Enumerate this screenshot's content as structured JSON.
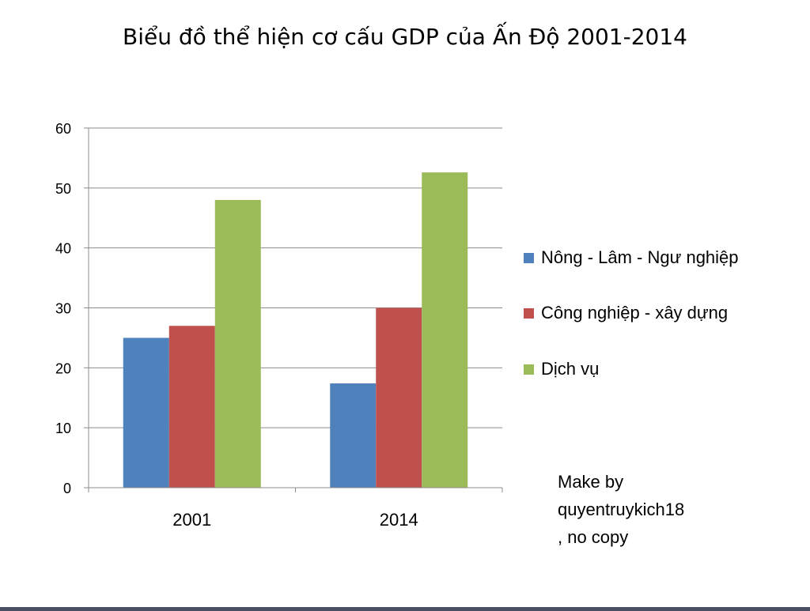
{
  "title": "Biểu đồ thể hiện cơ cấu GDP của Ấn Độ 2001-2014",
  "note": {
    "line1": "Make by",
    "line2": "quyentruykich18",
    "line3": ", no copy"
  },
  "chart_data": {
    "type": "bar",
    "title": "Biểu đồ thể hiện cơ cấu GDP của Ấn Độ 2001-2014",
    "xlabel": "",
    "ylabel": "",
    "categories": [
      "2001",
      "2014"
    ],
    "series": [
      {
        "name": "Nông - Lâm - Ngư nghiệp",
        "values": [
          25,
          17.4
        ],
        "color": "#4f81bd"
      },
      {
        "name": "Công nghiệp - xây dựng",
        "values": [
          27,
          30
        ],
        "color": "#c0504d"
      },
      {
        "name": "Dịch vụ",
        "values": [
          48,
          52.6
        ],
        "color": "#9bbb59"
      }
    ],
    "ylim": [
      0,
      60
    ],
    "yticks": [
      "0",
      "10",
      "20",
      "30",
      "40",
      "50",
      "60"
    ],
    "grid": true,
    "legend": "right"
  }
}
